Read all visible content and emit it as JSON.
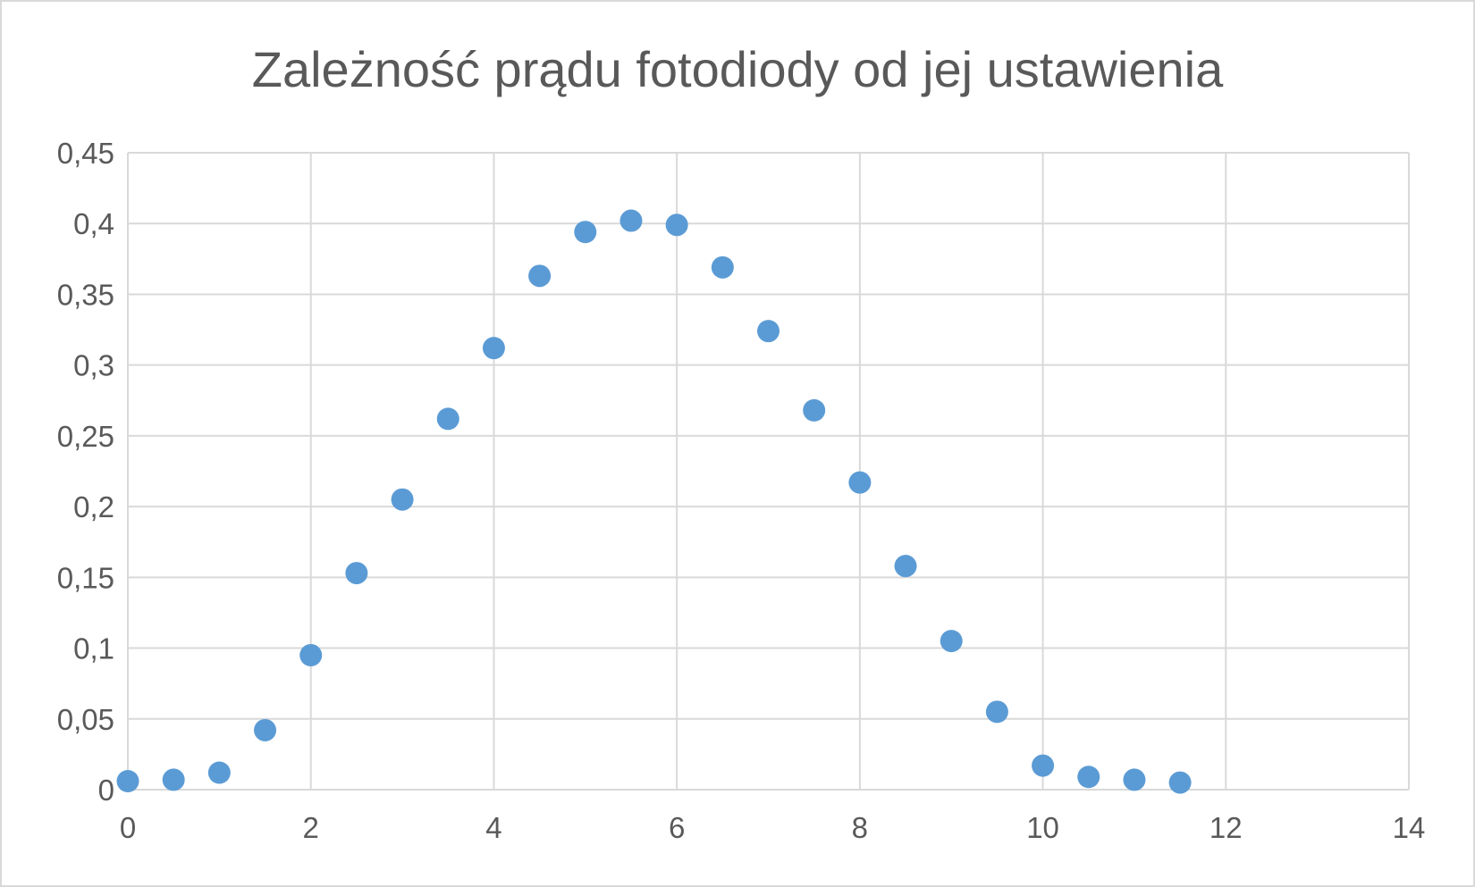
{
  "chart_data": {
    "type": "scatter",
    "title": "Zależność prądu fotodiody od jej ustawienia",
    "xlabel": "",
    "ylabel": "",
    "xlim": [
      0,
      14
    ],
    "ylim": [
      0,
      0.45
    ],
    "x_ticks": [
      0,
      2,
      4,
      6,
      8,
      10,
      12,
      14
    ],
    "y_ticks": [
      0,
      0.05,
      0.1,
      0.15,
      0.2,
      0.25,
      0.3,
      0.35,
      0.4,
      0.45
    ],
    "x_tick_labels": [
      "0",
      "2",
      "4",
      "6",
      "8",
      "10",
      "12",
      "14"
    ],
    "y_tick_labels": [
      "0",
      "0,05",
      "0,1",
      "0,15",
      "0,2",
      "0,25",
      "0,3",
      "0,35",
      "0,4",
      "0,45"
    ],
    "grid": true,
    "legend": "none",
    "marker_color": "#5b9bd5",
    "grid_color": "#d9d9d9",
    "text_color": "#595959",
    "series": [
      {
        "x": [
          0,
          0.5,
          1,
          1.5,
          2,
          2.5,
          3,
          3.5,
          4,
          4.5,
          5,
          5.5,
          6,
          6.5,
          7,
          7.5,
          8,
          8.5,
          9,
          9.5,
          10,
          10.5,
          11,
          11.5
        ],
        "y": [
          0.006,
          0.007,
          0.012,
          0.042,
          0.095,
          0.153,
          0.205,
          0.262,
          0.312,
          0.363,
          0.394,
          0.402,
          0.399,
          0.369,
          0.324,
          0.268,
          0.217,
          0.158,
          0.105,
          0.055,
          0.017,
          0.009,
          0.007,
          0.005
        ]
      }
    ]
  }
}
